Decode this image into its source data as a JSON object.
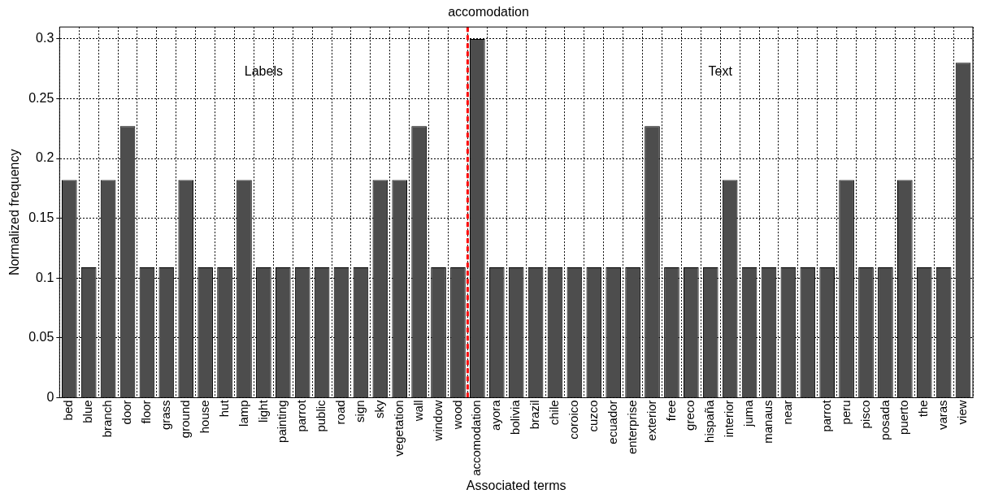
{
  "chart_data": {
    "type": "bar",
    "title": "accomodation",
    "xlabel": "Associated terms",
    "ylabel": "Normalized frequency",
    "categories": [
      "bed",
      "blue",
      "branch",
      "door",
      "floor",
      "grass",
      "ground",
      "house",
      "hut",
      "lamp",
      "light",
      "painting",
      "parrot",
      "public",
      "road",
      "sign",
      "sky",
      "vegetation",
      "wall",
      "window",
      "wood",
      "accomodation",
      "ayora",
      "bolivia",
      "brazil",
      "chile",
      "coroico",
      "cuzco",
      "ecuador",
      "enterprise",
      "exterior",
      "free",
      "greco",
      "hispaña",
      "interior",
      "juma",
      "manaus",
      "near",
      null,
      "parrot",
      "peru",
      "pisco",
      "posada",
      "puerto",
      "the",
      "varas",
      "view"
    ],
    "values": [
      0.182,
      0.109,
      0.182,
      0.227,
      0.109,
      0.109,
      0.182,
      0.109,
      0.109,
      0.182,
      0.109,
      0.109,
      0.109,
      0.109,
      0.109,
      0.109,
      0.182,
      0.182,
      0.227,
      0.109,
      0.109,
      0.3,
      0.109,
      0.109,
      0.109,
      0.109,
      0.109,
      0.109,
      0.109,
      0.109,
      0.227,
      0.109,
      0.109,
      0.109,
      0.182,
      0.109,
      0.109,
      0.109,
      0.109,
      0.109,
      0.182,
      0.109,
      0.109,
      0.182,
      0.109,
      0.109,
      0.28
    ],
    "color": "#4d4d4d",
    "ylim": [
      0,
      0.31
    ],
    "yticks": [
      0,
      0.05,
      0.1,
      0.15,
      0.2,
      0.25,
      0.3
    ],
    "grid": true,
    "line_style": "dotted",
    "ref_lines": [
      {
        "axis": "x",
        "value": "accomodation",
        "color": "#ff0000",
        "line_style": "dashed"
      }
    ],
    "annotations": [
      "Labels",
      "Text"
    ]
  }
}
